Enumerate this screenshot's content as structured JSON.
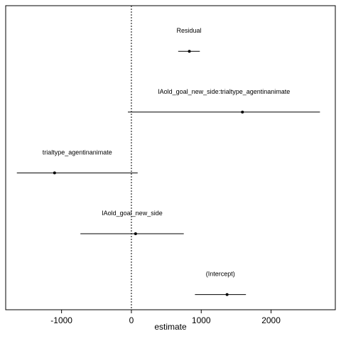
{
  "chart_data": {
    "type": "scatter",
    "subtype": "coefficient-forest-plot",
    "xlabel": "estimate",
    "xlim": [
      -1800,
      2920
    ],
    "x_ticks": [
      -1000,
      0,
      1000,
      2000
    ],
    "x_tick_labels": [
      "-1000",
      "0",
      "1000",
      "2000"
    ],
    "reference_line": {
      "x": 0,
      "style": "dotted"
    },
    "grid": false,
    "terms": [
      {
        "label": "Residual",
        "estimate": 830,
        "lower": 670,
        "upper": 980
      },
      {
        "label": "IAold_goal_new_side:trialtype_agentinanimate",
        "estimate": 1590,
        "lower": -50,
        "upper": 2700
      },
      {
        "label": "trialtype_agentinanimate",
        "estimate": -1100,
        "lower": -1640,
        "upper": 90
      },
      {
        "label": "IAold_goal_new_side",
        "estimate": 60,
        "lower": -730,
        "upper": 750
      },
      {
        "label": "(Intercept)",
        "estimate": 1370,
        "lower": 910,
        "upper": 1640
      }
    ]
  }
}
